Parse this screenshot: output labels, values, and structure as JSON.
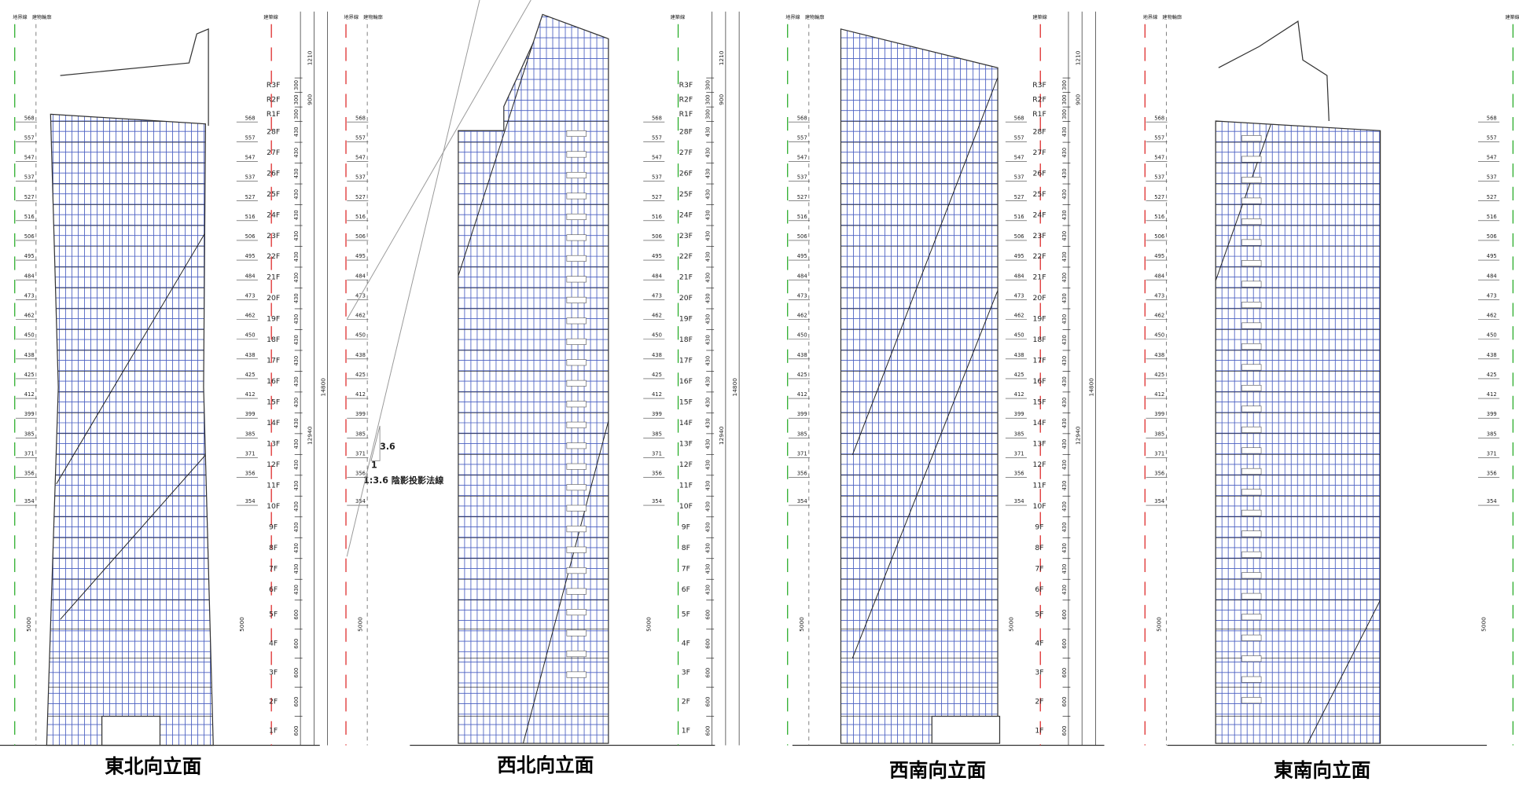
{
  "headers": {
    "boundary": "地界線",
    "outline": "建物輪廓",
    "building_line": "建築線"
  },
  "elevations": [
    {
      "caption": "東北向立面"
    },
    {
      "caption": "西北向立面"
    },
    {
      "caption": "西南向立面"
    },
    {
      "caption": "東南向立面"
    }
  ],
  "levels": [
    "568",
    "557",
    "547",
    "537",
    "527",
    "516",
    "506",
    "495",
    "484",
    "473",
    "462",
    "450",
    "438",
    "425",
    "412",
    "399",
    "385",
    "371",
    "356",
    "354"
  ],
  "floors": [
    {
      "name": "1F",
      "dim": "600"
    },
    {
      "name": "2F",
      "dim": "600"
    },
    {
      "name": "3F",
      "dim": "600"
    },
    {
      "name": "4F",
      "dim": "600"
    },
    {
      "name": "5F",
      "dim": "600"
    },
    {
      "name": "6F",
      "dim": "430"
    },
    {
      "name": "7F",
      "dim": "430"
    },
    {
      "name": "8F",
      "dim": "430"
    },
    {
      "name": "9F",
      "dim": "430"
    },
    {
      "name": "10F",
      "dim": "430"
    },
    {
      "name": "11F",
      "dim": "430"
    },
    {
      "name": "12F",
      "dim": "430"
    },
    {
      "name": "13F",
      "dim": "430"
    },
    {
      "name": "14F",
      "dim": "430"
    },
    {
      "name": "15F",
      "dim": "430"
    },
    {
      "name": "16F",
      "dim": "430"
    },
    {
      "name": "17F",
      "dim": "430"
    },
    {
      "name": "18F",
      "dim": "430"
    },
    {
      "name": "19F",
      "dim": "430"
    },
    {
      "name": "20F",
      "dim": "430"
    },
    {
      "name": "21F",
      "dim": "430"
    },
    {
      "name": "22F",
      "dim": "430"
    },
    {
      "name": "23F",
      "dim": "430"
    },
    {
      "name": "24F",
      "dim": "430"
    },
    {
      "name": "25F",
      "dim": "430"
    },
    {
      "name": "26F",
      "dim": "430"
    },
    {
      "name": "27F",
      "dim": "430"
    },
    {
      "name": "28F",
      "dim": "430"
    },
    {
      "name": "R1F",
      "dim": "300"
    },
    {
      "name": "R2F",
      "dim": "300"
    },
    {
      "name": "R3F",
      "dim": "300"
    }
  ],
  "dimensions": {
    "base": "5000",
    "height": "12940",
    "total": "14800",
    "roof": "1210",
    "roof_mid": "900"
  },
  "annotations": {
    "ratio_top": "3.6",
    "ratio_side": "1",
    "shadow_line": "1:3.6 陰影投影法線"
  }
}
